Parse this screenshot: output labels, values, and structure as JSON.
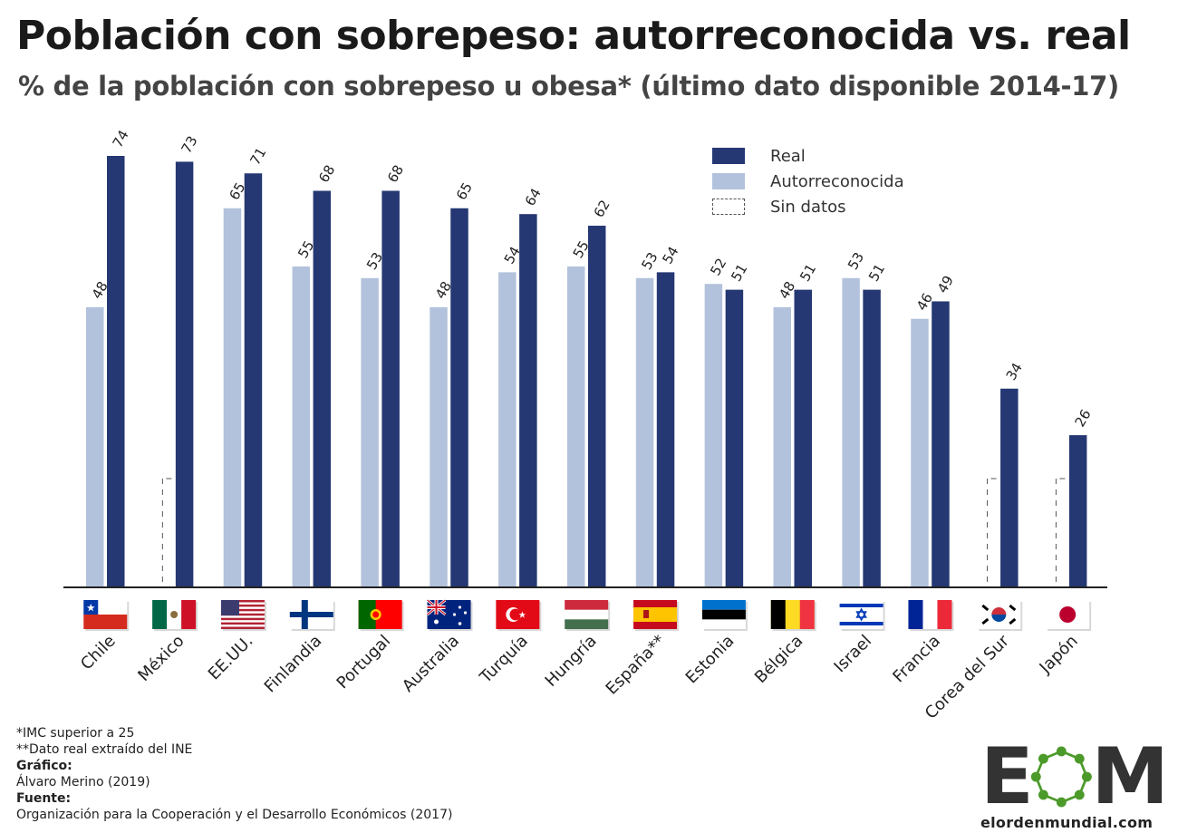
{
  "header": {
    "title": "Población con sobrepeso: autorreconocida vs. real",
    "subtitle": "% de la población con sobrepeso u obesa* (último dato disponible 2014-17)"
  },
  "legend": {
    "real": "Real",
    "self": "Autorreconocida",
    "nodata": "Sin datos"
  },
  "colors": {
    "real": "#253873",
    "self": "#b3c2dc",
    "nodata": "#555555"
  },
  "chart_data": {
    "type": "bar",
    "categories": [
      "Chile",
      "México",
      "EE.UU.",
      "Finlandia",
      "Portugal",
      "Australia",
      "Turquía",
      "Hungría",
      "España**",
      "Estonia",
      "Bélgica",
      "Israel",
      "Francia",
      "Corea del Sur",
      "Japón"
    ],
    "series": [
      {
        "name": "Autorreconocida",
        "values": [
          48,
          null,
          65,
          55,
          53,
          48,
          54,
          55,
          53,
          52,
          48,
          53,
          46,
          null,
          null
        ]
      },
      {
        "name": "Real",
        "values": [
          74,
          73,
          71,
          68,
          68,
          65,
          64,
          62,
          54,
          51,
          51,
          51,
          49,
          34,
          26
        ]
      }
    ],
    "ylim": [
      0,
      74
    ],
    "grid": false,
    "legend_position": "top-right"
  },
  "flags": [
    "chile-flag",
    "mexico-flag",
    "usa-flag",
    "finland-flag",
    "portugal-flag",
    "australia-flag",
    "turkey-flag",
    "hungary-flag",
    "spain-flag",
    "estonia-flag",
    "belgium-flag",
    "israel-flag",
    "france-flag",
    "south-korea-flag",
    "japan-flag"
  ],
  "notes": {
    "line1": "*IMC superior a 25",
    "line2": "**Dato real extraído del INE",
    "grafico_label": "Gráfico:",
    "grafico_value": "Álvaro Merino (2019)",
    "fuente_label": "Fuente:",
    "fuente_value": "Organización para la Cooperación y el Desarrollo Económicos (2017)"
  },
  "logo": {
    "letters_left": "E",
    "letters_right": "M",
    "url": "elordenmundial.com"
  }
}
